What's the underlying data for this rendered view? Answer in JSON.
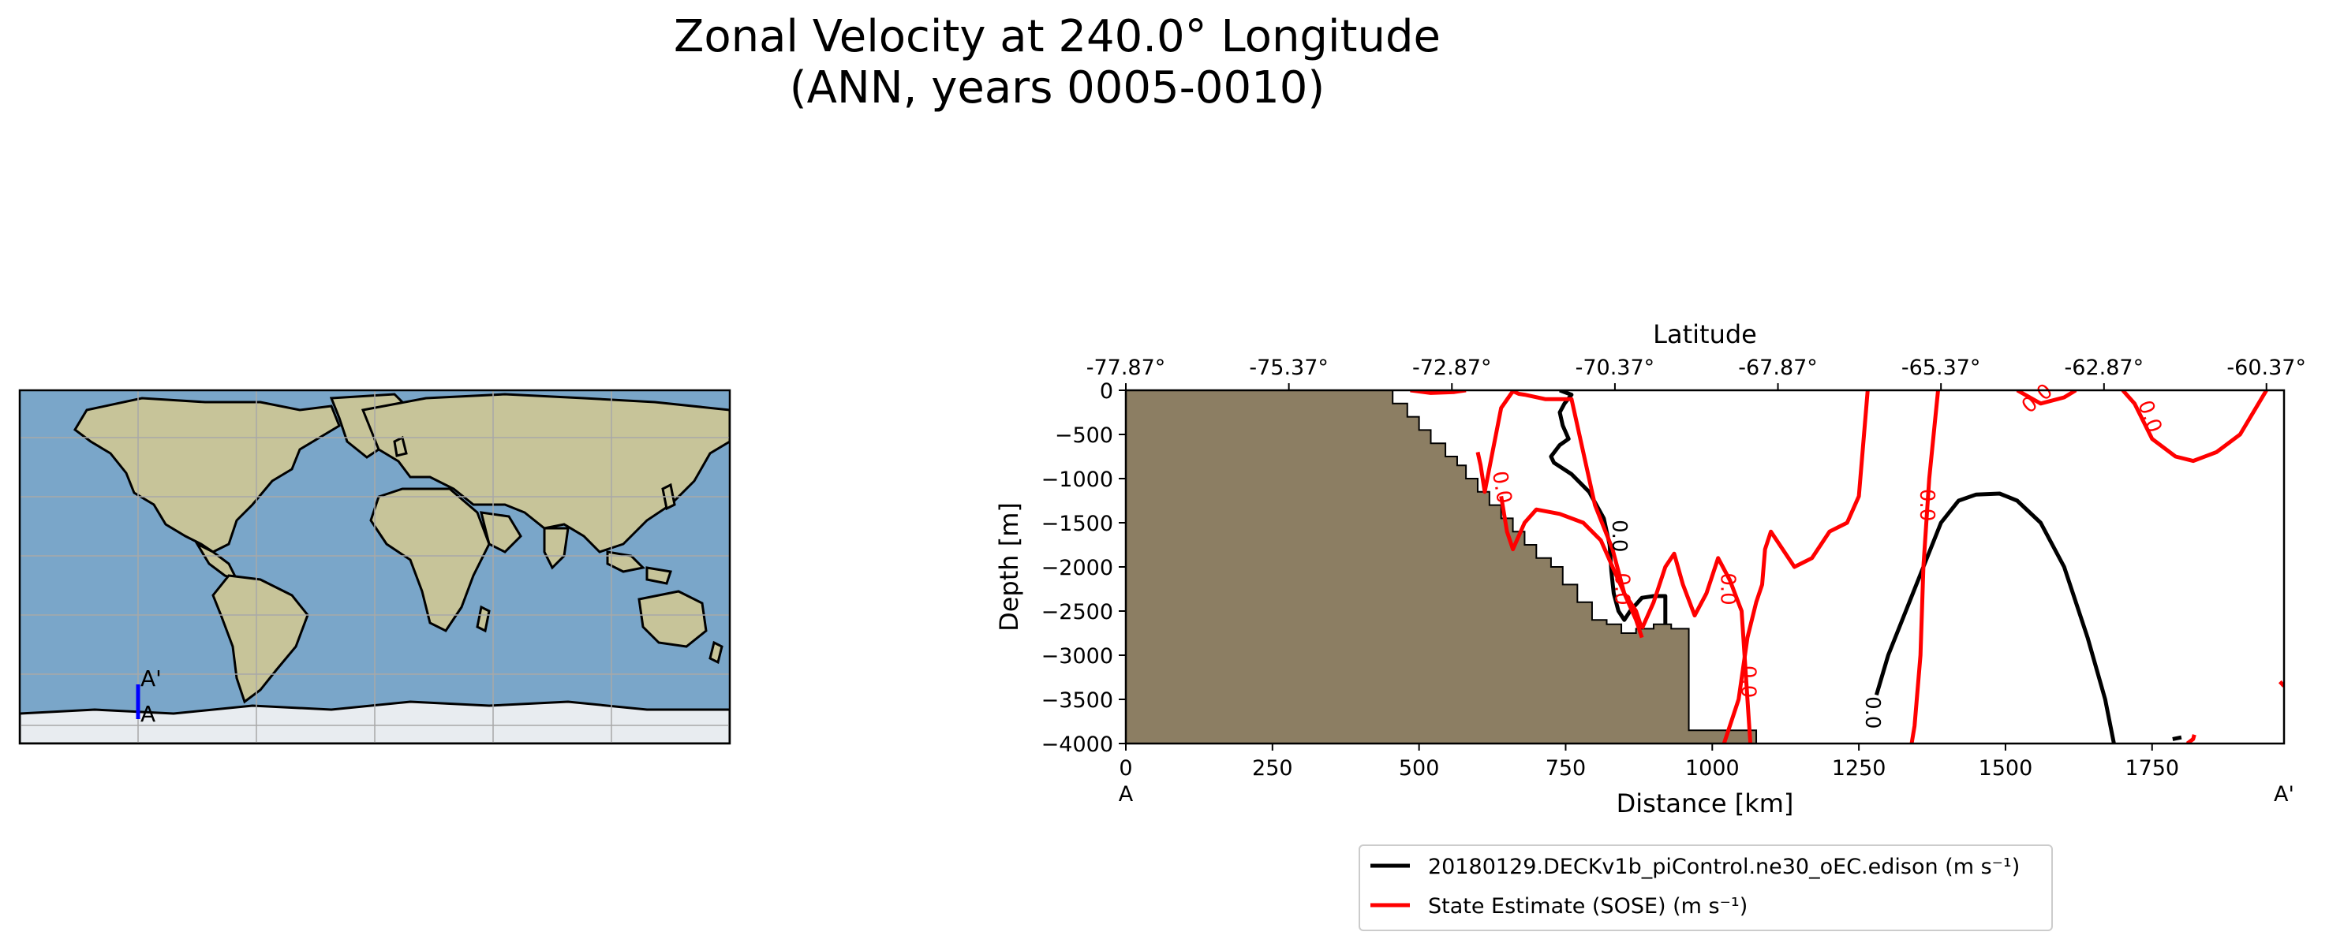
{
  "title": {
    "line1": "Zonal Velocity at 240.0° Longitude",
    "line2": "(ANN, years 0005-0010)"
  },
  "map": {
    "start_label": "A",
    "end_label": "A'",
    "colors": {
      "ocean": "#7aa6c9",
      "land": "#c7c499",
      "ice": "#e8ecf0",
      "section": "#0000ff"
    }
  },
  "chart_data": {
    "type": "line",
    "subtype": "contour section",
    "xlabel": "Distance [km]",
    "ylabel": "Depth [m]",
    "top_axis_label": "Latitude",
    "xlim": [
      0,
      1975
    ],
    "ylim": [
      -4000,
      0
    ],
    "xticks": [
      0,
      250,
      500,
      750,
      1000,
      1250,
      1500,
      1750
    ],
    "xtick_labels": [
      "0",
      "250",
      "500",
      "750",
      "1000",
      "1250",
      "1500",
      "1750"
    ],
    "yticks": [
      0,
      -500,
      -1000,
      -1500,
      -2000,
      -2500,
      -3000,
      -3500,
      -4000
    ],
    "ytick_labels": [
      "0",
      "−500",
      "−1000",
      "−1500",
      "−2000",
      "−2500",
      "−3000",
      "−3500",
      "−4000"
    ],
    "top_ticks": [
      0,
      278,
      556,
      834,
      1112,
      1390,
      1668,
      1945
    ],
    "top_tick_labels": [
      "-77.87°",
      "-75.37°",
      "-72.87°",
      "-70.37°",
      "-67.87°",
      "-65.37°",
      "-62.87°",
      "-60.37°"
    ],
    "start_label": "A",
    "end_label": "A'",
    "bathymetry_color": "#8c7e63",
    "bathymetry": {
      "x": [
        0,
        455,
        455,
        480,
        480,
        500,
        500,
        520,
        520,
        545,
        545,
        565,
        565,
        580,
        580,
        600,
        600,
        620,
        620,
        640,
        640,
        660,
        660,
        680,
        680,
        700,
        700,
        725,
        725,
        745,
        745,
        770,
        770,
        795,
        795,
        820,
        820,
        845,
        845,
        870,
        870,
        900,
        900,
        930,
        930,
        960,
        960,
        1075,
        1075
      ],
      "y": [
        0,
        0,
        -150,
        -150,
        -300,
        -300,
        -450,
        -450,
        -600,
        -600,
        -750,
        -750,
        -850,
        -850,
        -1000,
        -1000,
        -1150,
        -1150,
        -1300,
        -1300,
        -1450,
        -1450,
        -1600,
        -1600,
        -1750,
        -1750,
        -1900,
        -1900,
        -2000,
        -2000,
        -2200,
        -2200,
        -2400,
        -2400,
        -2600,
        -2600,
        -2650,
        -2650,
        -2750,
        -2750,
        -2700,
        -2700,
        -2650,
        -2650,
        -2700,
        -2700,
        -3850,
        -3850,
        -4000
      ]
    },
    "contour_level": "0.0",
    "series": [
      {
        "name": "20180129.DECKv1b_piControl.ne30_oEC.edison (m s⁻¹)",
        "color": "#000000",
        "contours": [
          {
            "x": [
              740,
              760,
              748,
              740,
              745,
              755,
              740,
              725,
              730,
              760,
              790,
              815,
              825,
              828,
              832,
              840,
              850,
              860,
              880,
              900,
              920,
              920
            ],
            "y": [
              0,
              -50,
              -150,
              -250,
              -400,
              -550,
              -620,
              -750,
              -820,
              -950,
              -1150,
              -1450,
              -1750,
              -2050,
              -2300,
              -2500,
              -2600,
              -2500,
              -2350,
              -2330,
              -2330,
              -2650
            ]
          },
          {
            "x": [
              1280,
              1300,
              1330,
              1360,
              1390,
              1420,
              1450,
              1490,
              1520,
              1560,
              1600,
              1640,
              1670,
              1685
            ],
            "y": [
              -3450,
              -3000,
              -2500,
              -2000,
              -1500,
              -1250,
              -1180,
              -1170,
              -1250,
              -1500,
              -2000,
              -2800,
              -3500,
              -4000
            ]
          },
          {
            "x": [
              1785,
              1800
            ],
            "y": [
              -3950,
              -3930
            ]
          }
        ]
      },
      {
        "name": "State Estimate (SOSE) (m s⁻¹)",
        "color": "#ff0000",
        "contours": [
          {
            "x": [
              485,
              520,
              560,
              580
            ],
            "y": [
              0,
              -30,
              -20,
              0
            ]
          },
          {
            "x": [
              600,
              605,
              612,
              640,
              660,
              670,
              680,
              715,
              760,
              800,
              830,
              850,
              870,
              880
            ],
            "y": [
              -700,
              -850,
              -1150,
              -200,
              -10,
              -40,
              -50,
              -100,
              -100,
              -1300,
              -1800,
              -2300,
              -2600,
              -2800
            ]
          },
          {
            "x": [
              640,
              650,
              660,
              680,
              700,
              740,
              780,
              810,
              830,
              850,
              870,
              880
            ],
            "y": [
              -1200,
              -1600,
              -1800,
              -1500,
              -1350,
              -1400,
              -1500,
              -1700,
              -2000,
              -2300,
              -2500,
              -2700
            ]
          },
          {
            "x": [
              880,
              900,
              920,
              935,
              950,
              970,
              990,
              1010,
              1030,
              1050,
              1055,
              1065
            ],
            "y": [
              -2700,
              -2400,
              -2000,
              -1850,
              -2200,
              -2550,
              -2300,
              -1900,
              -2150,
              -2500,
              -3000,
              -4000
            ]
          },
          {
            "x": [
              1020,
              1045,
              1060,
              1075,
              1085,
              1090,
              1100,
              1140,
              1170,
              1200,
              1230,
              1250,
              1265
            ],
            "y": [
              -4000,
              -3500,
              -2800,
              -2400,
              -2200,
              -1800,
              -1600,
              -2000,
              -1900,
              -1600,
              -1500,
              -1200,
              0
            ]
          },
          {
            "x": [
              1385,
              1370,
              1360,
              1355,
              1345,
              1340
            ],
            "y": [
              0,
              -1000,
              -2000,
              -3000,
              -3800,
              -4000
            ]
          },
          {
            "x": [
              1520,
              1560,
              1600,
              1620
            ],
            "y": [
              0,
              -150,
              -80,
              0
            ]
          },
          {
            "x": [
              1700,
              1720,
              1750,
              1790,
              1820,
              1860,
              1900,
              1945
            ],
            "y": [
              0,
              -150,
              -550,
              -750,
              -800,
              -700,
              -500,
              0
            ]
          },
          {
            "x": [
              1810,
              1820,
              1822
            ],
            "y": [
              -4000,
              -3950,
              -3900
            ]
          },
          {
            "x": [
              1968,
              1975
            ],
            "y": [
              -3300,
              -3350
            ]
          }
        ]
      }
    ]
  }
}
